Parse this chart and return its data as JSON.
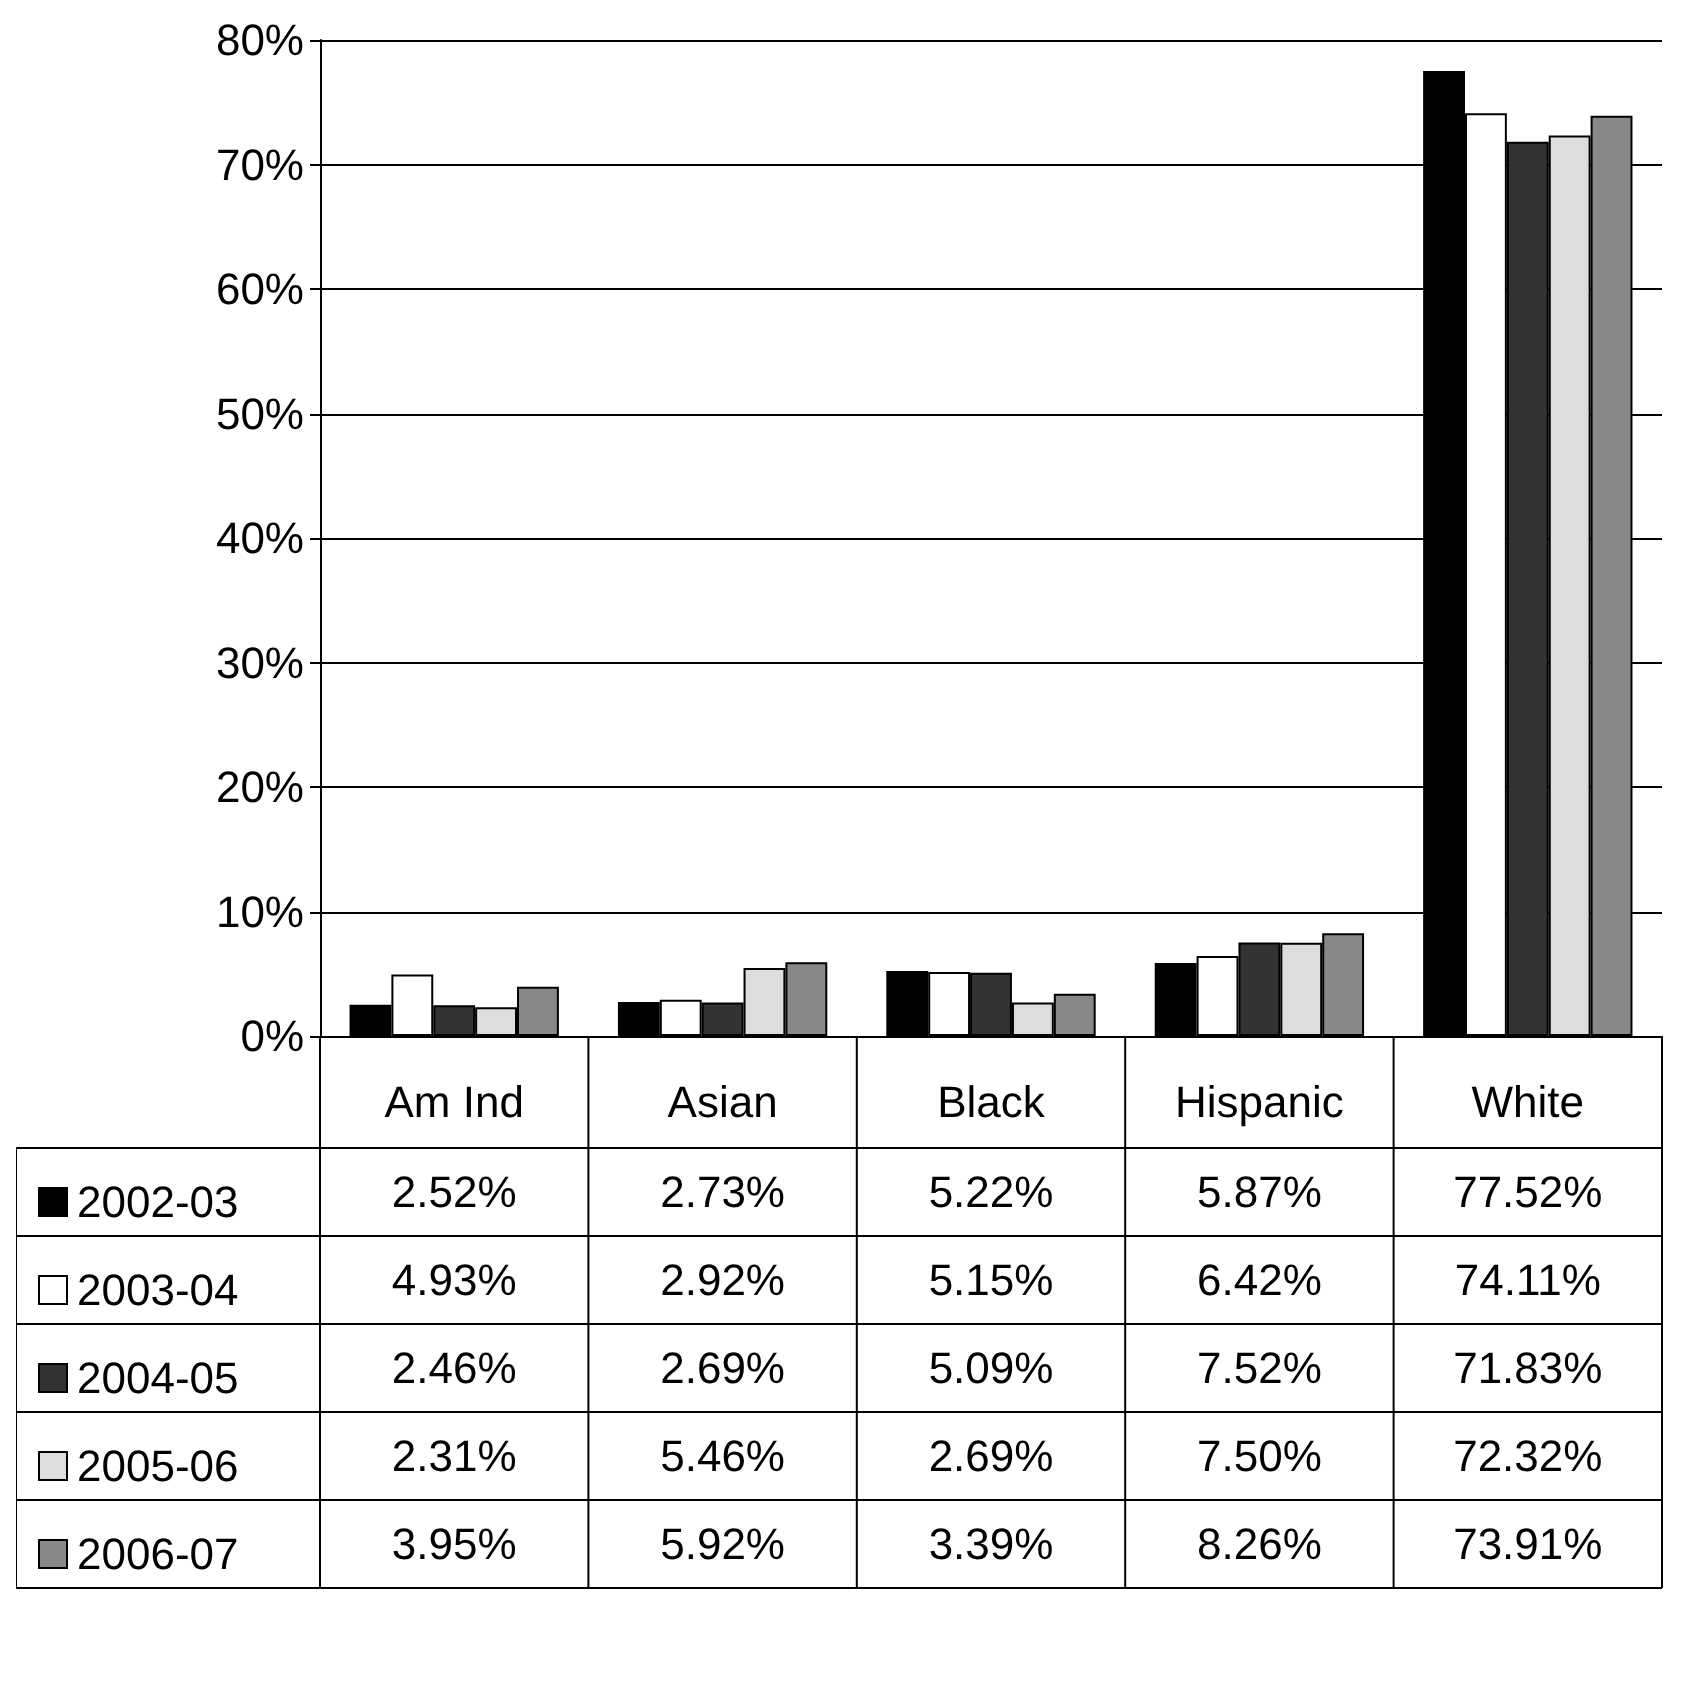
{
  "chart_data": {
    "type": "bar",
    "categories": [
      "Am Ind",
      "Asian",
      "Black",
      "Hispanic",
      "White"
    ],
    "series": [
      {
        "name": "2002-03",
        "color": "#000000",
        "values": [
          2.52,
          2.73,
          5.22,
          5.87,
          77.52
        ],
        "value_labels": [
          "2.52%",
          "2.73%",
          "5.22%",
          "5.87%",
          "77.52%"
        ]
      },
      {
        "name": "2003-04",
        "color": "#ffffff",
        "values": [
          4.93,
          2.92,
          5.15,
          6.42,
          74.11
        ],
        "value_labels": [
          "4.93%",
          "2.92%",
          "5.15%",
          "6.42%",
          "74.11%"
        ]
      },
      {
        "name": "2004-05",
        "color": "#333333",
        "values": [
          2.46,
          2.69,
          5.09,
          7.52,
          71.83
        ],
        "value_labels": [
          "2.46%",
          "2.69%",
          "5.09%",
          "7.52%",
          "71.83%"
        ]
      },
      {
        "name": "2005-06",
        "color": "#dddddd",
        "values": [
          2.31,
          5.46,
          2.69,
          7.5,
          72.32
        ],
        "value_labels": [
          "2.31%",
          "5.46%",
          "2.69%",
          "7.50%",
          "72.32%"
        ]
      },
      {
        "name": "2006-07",
        "color": "#888888",
        "values": [
          3.95,
          5.92,
          3.39,
          8.26,
          73.91
        ],
        "value_labels": [
          "3.95%",
          "5.92%",
          "3.39%",
          "8.26%",
          "73.91%"
        ]
      }
    ],
    "ylim": [
      0,
      80
    ],
    "yticks": [
      {
        "value": 0,
        "label": "0%"
      },
      {
        "value": 10,
        "label": "10%"
      },
      {
        "value": 20,
        "label": "20%"
      },
      {
        "value": 30,
        "label": "30%"
      },
      {
        "value": 40,
        "label": "40%"
      },
      {
        "value": 50,
        "label": "50%"
      },
      {
        "value": 60,
        "label": "60%"
      },
      {
        "value": 70,
        "label": "70%"
      },
      {
        "value": 80,
        "label": "80%"
      }
    ],
    "grid": "y",
    "legend": "bottom left"
  }
}
